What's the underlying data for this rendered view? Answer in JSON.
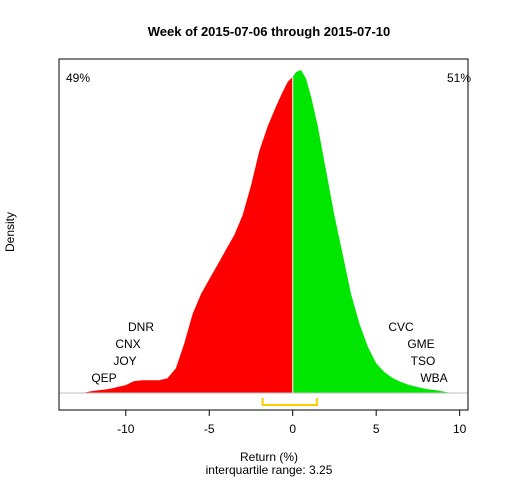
{
  "chart_data": {
    "type": "area",
    "title": "Week of 2015-07-06 through 2015-07-10",
    "xlabel": "Return (%)",
    "ylabel": "Density",
    "subtitle": "interquartile range: 3.25",
    "xlim": [
      -14,
      10.5
    ],
    "x_ticks": [
      -10,
      -5,
      0,
      5,
      10
    ],
    "split_at": 0,
    "pct_negative": "49%",
    "pct_positive": "51%",
    "colors": {
      "negative": "#ff0000",
      "positive": "#00e600",
      "iqr": "#ffcc00",
      "baseline": "#bfbfbf"
    },
    "iqr_range": [
      -1.8,
      1.45
    ],
    "density": {
      "x": [
        -12.6,
        -12.0,
        -11.0,
        -10.0,
        -9.5,
        -9.0,
        -8.0,
        -7.5,
        -7.0,
        -6.5,
        -6.0,
        -5.5,
        -5.0,
        -4.5,
        -4.0,
        -3.5,
        -3.0,
        -2.5,
        -2.0,
        -1.5,
        -1.0,
        -0.6,
        -0.3,
        0.0,
        0.2,
        0.5,
        0.8,
        1.1,
        1.5,
        2.0,
        2.5,
        3.0,
        3.5,
        4.0,
        4.5,
        5.0,
        5.5,
        6.0,
        6.5,
        7.0,
        7.5,
        8.0,
        8.5,
        9.0,
        9.5
      ],
      "y": [
        0.0,
        0.002,
        0.004,
        0.008,
        0.012,
        0.013,
        0.013,
        0.015,
        0.025,
        0.05,
        0.08,
        0.1,
        0.115,
        0.13,
        0.145,
        0.16,
        0.18,
        0.21,
        0.245,
        0.27,
        0.29,
        0.305,
        0.315,
        0.32,
        0.325,
        0.327,
        0.318,
        0.3,
        0.27,
        0.225,
        0.18,
        0.14,
        0.1,
        0.07,
        0.047,
        0.03,
        0.021,
        0.015,
        0.011,
        0.008,
        0.006,
        0.004,
        0.003,
        0.0015,
        0.0
      ]
    },
    "left_tail_labels": [
      "DNR",
      "CNX",
      "JOY",
      "QEP"
    ],
    "right_tail_labels": [
      "CVC",
      "GME",
      "TSO",
      "WBA"
    ]
  }
}
